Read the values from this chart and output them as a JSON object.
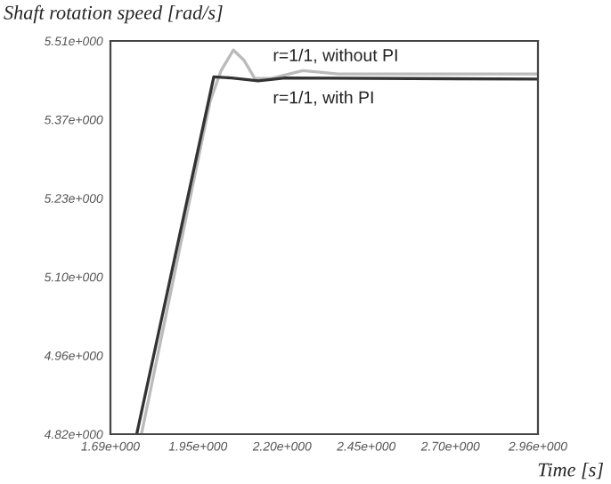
{
  "chart_data": {
    "type": "line",
    "xlabel": "Time [s]",
    "ylabel": "Shaft rotation speed [rad/s]",
    "xlim": [
      1.69,
      2.96
    ],
    "ylim": [
      4.82,
      5.51
    ],
    "xticks": [
      {
        "value": 1.69,
        "label": "1.69e+000"
      },
      {
        "value": 1.95,
        "label": "1.95e+000"
      },
      {
        "value": 2.2,
        "label": "2.20e+000"
      },
      {
        "value": 2.45,
        "label": "2.45e+000"
      },
      {
        "value": 2.7,
        "label": "2.70e+000"
      },
      {
        "value": 2.96,
        "label": "2.96e+000"
      }
    ],
    "yticks": [
      {
        "value": 4.82,
        "label": "4.82e+000"
      },
      {
        "value": 4.958,
        "label": "4.96e+000"
      },
      {
        "value": 5.096,
        "label": "5.10e+000"
      },
      {
        "value": 5.234,
        "label": "5.23e+000"
      },
      {
        "value": 5.372,
        "label": "5.37e+000"
      },
      {
        "value": 5.51,
        "label": "5.51e+000"
      }
    ],
    "grid": false,
    "legend": false,
    "series": [
      {
        "name": "r=1/1, without PI",
        "color": "#bbbbbb",
        "x": [
          1.782,
          1.986,
          2.018,
          2.055,
          2.087,
          2.119,
          2.166,
          2.261,
          2.367,
          2.96
        ],
        "values": [
          4.82,
          5.404,
          5.457,
          5.494,
          5.476,
          5.444,
          5.444,
          5.458,
          5.452,
          5.452
        ]
      },
      {
        "name": "r=1/1, with PI",
        "color": "#333333",
        "x": [
          1.768,
          1.997,
          2.05,
          2.129,
          2.209,
          2.96
        ],
        "values": [
          4.82,
          5.447,
          5.445,
          5.44,
          5.445,
          5.443
        ]
      }
    ]
  }
}
